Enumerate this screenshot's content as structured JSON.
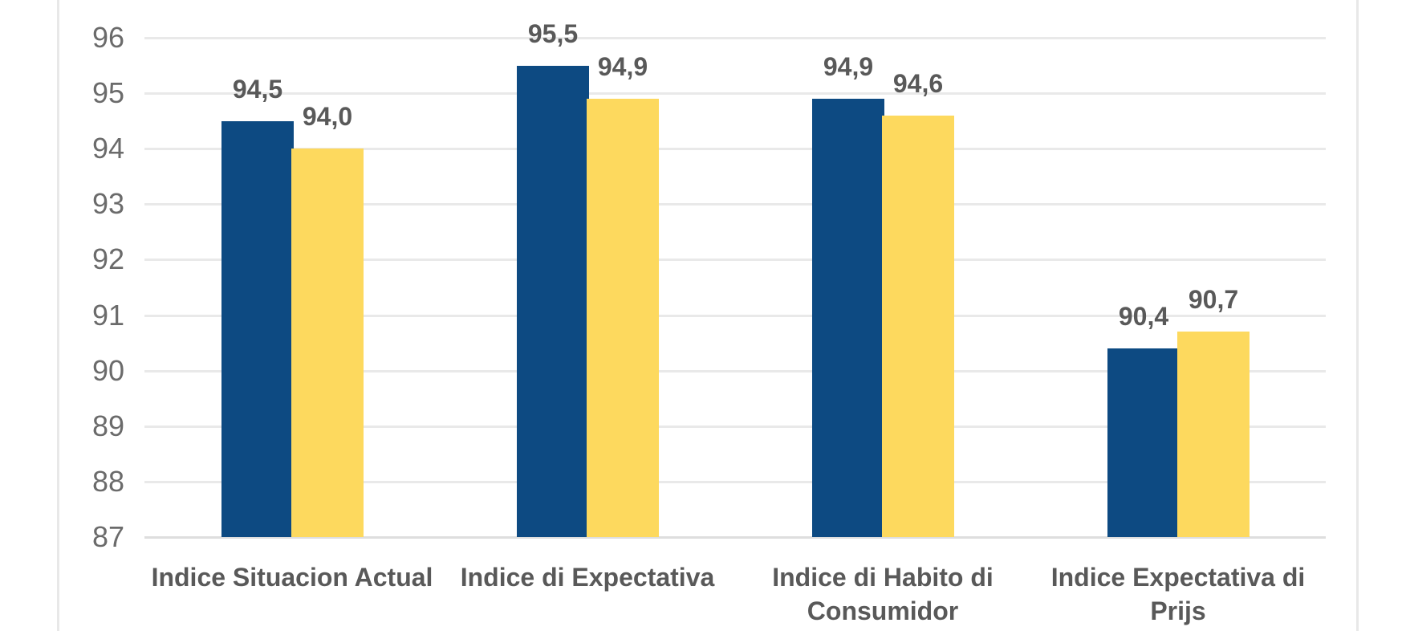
{
  "chart_data": {
    "type": "bar",
    "title": "",
    "legend": "none",
    "grid": true,
    "decimal_separator": ",",
    "categories": [
      {
        "label": "Indice Situacion Actual",
        "lines": [
          "Indice Situacion Actual"
        ]
      },
      {
        "label": "Indice di Expectativa",
        "lines": [
          "Indice di Expectativa"
        ]
      },
      {
        "label": "Indice di Habito di Consumidor",
        "lines": [
          "Indice di Habito di",
          "Consumidor"
        ]
      },
      {
        "label": "Indice Expectativa di Prijs",
        "lines": [
          "Indice Expectativa di",
          "Prijs"
        ]
      }
    ],
    "series": [
      {
        "name": "dark-blue-series",
        "color": "#0d4a82",
        "values": [
          94.5,
          95.5,
          94.9,
          90.4
        ],
        "labels": [
          "94,5",
          "95,5",
          "94,9",
          "90,4"
        ]
      },
      {
        "name": "yellow-series",
        "color": "#fdd95e",
        "values": [
          94.0,
          94.9,
          94.6,
          90.7
        ],
        "labels": [
          "94,0",
          "94,9",
          "94,6",
          "90,7"
        ]
      }
    ],
    "y_axis": {
      "min": 87,
      "max": 96,
      "ticks": [
        96,
        95,
        94,
        93,
        92,
        91,
        90,
        89,
        88,
        87
      ]
    }
  },
  "colors": {
    "bar_blue": "#0d4a82",
    "bar_yellow": "#fdd95e",
    "gridline": "#e9e9e9",
    "axis_line": "#dedede",
    "tick_label": "#6b6b6b",
    "data_label": "#595959",
    "category_label": "#595959",
    "frame_border": "#e8e8e8",
    "background": "#ffffff"
  }
}
